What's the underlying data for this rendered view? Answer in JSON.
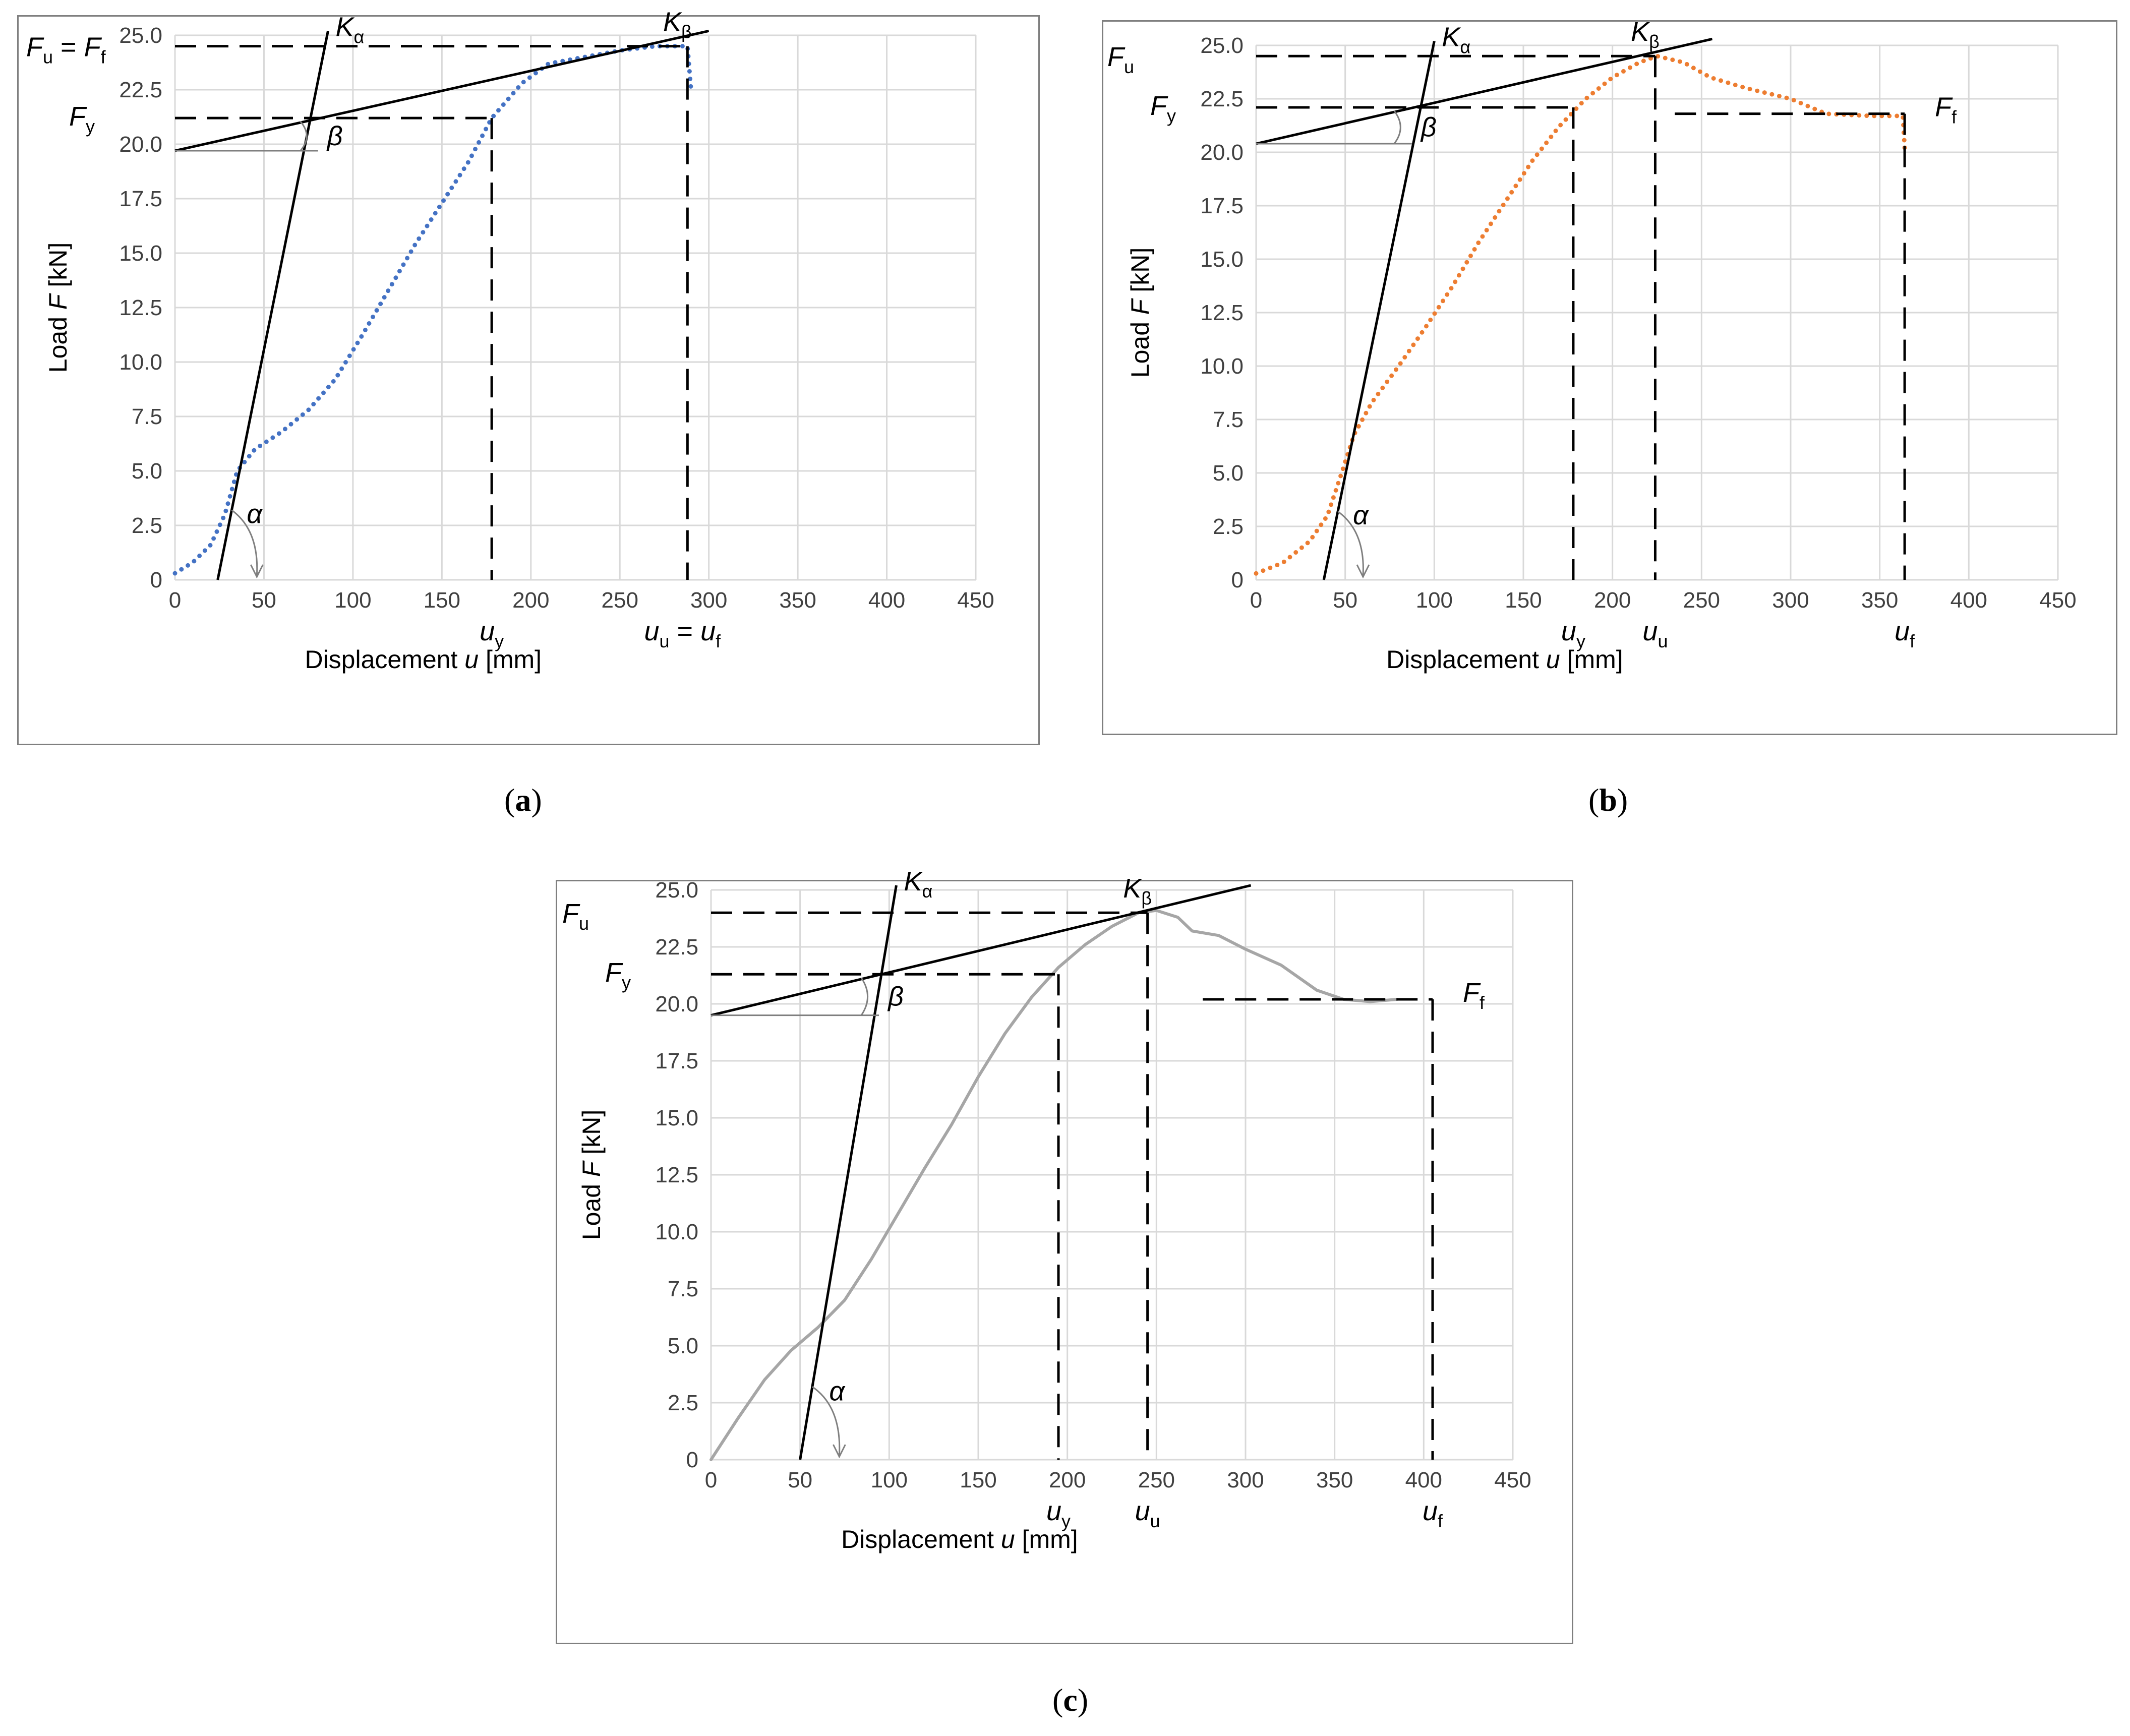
{
  "chart_data": [
    {
      "panel": "a",
      "type": "line",
      "xlabel_prefix": "Displacement ",
      "xlabel_var": "u",
      "xlabel_unit": " [mm]",
      "ylabel_prefix": "Load ",
      "ylabel_var": "F",
      "ylabel_unit": " [kN]",
      "xlim": [
        0,
        450
      ],
      "ylim": [
        0,
        25
      ],
      "x_ticks": [
        "0",
        "50",
        "100",
        "150",
        "200",
        "250",
        "300",
        "350",
        "400",
        "450"
      ],
      "y_ticks": [
        "0",
        "2.5",
        "5.0",
        "7.5",
        "10.0",
        "12.5",
        "15.0",
        "17.5",
        "20.0",
        "22.5",
        "25.0"
      ],
      "series_style": "dotted",
      "series_color": "#4472c4",
      "curve": [
        [
          0,
          0.3
        ],
        [
          10,
          0.8
        ],
        [
          20,
          1.6
        ],
        [
          28,
          3.0
        ],
        [
          35,
          5.0
        ],
        [
          45,
          6.0
        ],
        [
          60,
          6.8
        ],
        [
          75,
          7.8
        ],
        [
          90,
          9.2
        ],
        [
          105,
          11.2
        ],
        [
          120,
          13.3
        ],
        [
          135,
          15.4
        ],
        [
          150,
          17.3
        ],
        [
          165,
          19.2
        ],
        [
          178,
          21.2
        ],
        [
          195,
          22.8
        ],
        [
          210,
          23.7
        ],
        [
          230,
          24.0
        ],
        [
          250,
          24.3
        ],
        [
          270,
          24.5
        ],
        [
          288,
          24.5
        ],
        [
          290,
          22.5
        ]
      ],
      "k_alpha": [
        [
          24,
          0
        ],
        [
          86,
          25.2
        ]
      ],
      "k_beta": [
        [
          0,
          19.7
        ],
        [
          300,
          25.2
        ]
      ],
      "Fy": 21.2,
      "Fu": 24.5,
      "uy": 178,
      "uu": 288,
      "uf": 288,
      "labels": {
        "ka_main": "K",
        "ka_sub": "α",
        "kb_main": "K",
        "kb_sub": "β",
        "fu_main": "F",
        "fu_sub": "u",
        "fu_eq": " = ",
        "ff_main": "F",
        "ff_sub": "f",
        "fy_main": "F",
        "fy_sub": "y",
        "uy_main": "u",
        "uy_sub": "y",
        "uu_main": "u",
        "uu_sub": "u",
        "uu_eq": " = ",
        "uf_main": "u",
        "uf_sub": "f",
        "alpha": "α",
        "beta": "β"
      },
      "caption": "a"
    },
    {
      "panel": "b",
      "type": "line",
      "xlabel_prefix": "Displacement ",
      "xlabel_var": "u",
      "xlabel_unit": " [mm]",
      "ylabel_prefix": "Load ",
      "ylabel_var": "F",
      "ylabel_unit": " [kN]",
      "xlim": [
        0,
        450
      ],
      "ylim": [
        0,
        25
      ],
      "x_ticks": [
        "0",
        "50",
        "100",
        "150",
        "200",
        "250",
        "300",
        "350",
        "400",
        "450"
      ],
      "y_ticks": [
        "0",
        "2.5",
        "5.0",
        "7.5",
        "10.0",
        "12.5",
        "15.0",
        "17.5",
        "20.0",
        "22.5",
        "25.0"
      ],
      "series_style": "dotted",
      "series_color": "#ed7d31",
      "curve": [
        [
          0,
          0.3
        ],
        [
          15,
          0.8
        ],
        [
          30,
          1.8
        ],
        [
          40,
          3.0
        ],
        [
          48,
          5.0
        ],
        [
          55,
          6.8
        ],
        [
          65,
          8.3
        ],
        [
          80,
          10.0
        ],
        [
          95,
          11.8
        ],
        [
          110,
          13.7
        ],
        [
          125,
          15.8
        ],
        [
          140,
          17.7
        ],
        [
          155,
          19.6
        ],
        [
          170,
          21.2
        ],
        [
          185,
          22.5
        ],
        [
          200,
          23.5
        ],
        [
          215,
          24.2
        ],
        [
          225,
          24.5
        ],
        [
          240,
          24.2
        ],
        [
          255,
          23.5
        ],
        [
          275,
          23.0
        ],
        [
          300,
          22.5
        ],
        [
          320,
          21.8
        ],
        [
          345,
          21.7
        ],
        [
          363,
          21.7
        ],
        [
          364,
          20.2
        ]
      ],
      "k_alpha": [
        [
          38,
          0
        ],
        [
          100,
          25.2
        ]
      ],
      "k_beta": [
        [
          0,
          20.4
        ],
        [
          256,
          25.3
        ]
      ],
      "Fy": 22.1,
      "Fu": 24.5,
      "Ff": 21.8,
      "uy": 178,
      "uu": 224,
      "uf": 364,
      "ff_line_start": 235,
      "labels": {
        "ka_main": "K",
        "ka_sub": "α",
        "kb_main": "K",
        "kb_sub": "β",
        "fu_main": "F",
        "fu_sub": "u",
        "fy_main": "F",
        "fy_sub": "y",
        "ff_main": "F",
        "ff_sub": "f",
        "uy_main": "u",
        "uy_sub": "y",
        "uu_main": "u",
        "uu_sub": "u",
        "uf_main": "u",
        "uf_sub": "f",
        "alpha": "α",
        "beta": "β"
      },
      "caption": "b"
    },
    {
      "panel": "c",
      "type": "line",
      "xlabel_prefix": "Displacement ",
      "xlabel_var": "u",
      "xlabel_unit": " [mm]",
      "ylabel_prefix": "Load ",
      "ylabel_var": "F",
      "ylabel_unit": " [kN]",
      "xlim": [
        0,
        450
      ],
      "ylim": [
        0,
        25
      ],
      "x_ticks": [
        "0",
        "50",
        "100",
        "150",
        "200",
        "250",
        "300",
        "350",
        "400",
        "450"
      ],
      "y_ticks": [
        "0",
        "2.5",
        "5.0",
        "7.5",
        "10.0",
        "12.5",
        "15.0",
        "17.5",
        "20.0",
        "22.5",
        "25.0"
      ],
      "series_style": "solid",
      "series_color": "#a6a6a6",
      "curve": [
        [
          0,
          0
        ],
        [
          15,
          1.8
        ],
        [
          30,
          3.5
        ],
        [
          45,
          4.8
        ],
        [
          60,
          5.8
        ],
        [
          75,
          7.0
        ],
        [
          90,
          8.8
        ],
        [
          105,
          10.8
        ],
        [
          120,
          12.8
        ],
        [
          135,
          14.7
        ],
        [
          150,
          16.8
        ],
        [
          165,
          18.7
        ],
        [
          180,
          20.3
        ],
        [
          195,
          21.6
        ],
        [
          210,
          22.6
        ],
        [
          225,
          23.4
        ],
        [
          240,
          24.0
        ],
        [
          250,
          24.1
        ],
        [
          262,
          23.8
        ],
        [
          270,
          23.2
        ],
        [
          285,
          23.0
        ],
        [
          300,
          22.4
        ],
        [
          320,
          21.7
        ],
        [
          340,
          20.6
        ],
        [
          355,
          20.2
        ],
        [
          370,
          20.1
        ],
        [
          385,
          20.2
        ]
      ],
      "k_alpha": [
        [
          50,
          0
        ],
        [
          104,
          25.2
        ]
      ],
      "k_beta": [
        [
          0,
          19.5
        ],
        [
          303,
          25.2
        ]
      ],
      "Fy": 21.3,
      "Fu": 24.0,
      "Ff": 20.2,
      "uy": 195,
      "uu": 245,
      "uf": 405,
      "ff_line_start": 276,
      "labels": {
        "ka_main": "K",
        "ka_sub": "α",
        "kb_main": "K",
        "kb_sub": "β",
        "fu_main": "F",
        "fu_sub": "u",
        "fy_main": "F",
        "fy_sub": "y",
        "ff_main": "F",
        "ff_sub": "f",
        "uy_main": "u",
        "uy_sub": "y",
        "uu_main": "u",
        "uu_sub": "u",
        "uf_main": "u",
        "uf_sub": "f",
        "alpha": "α",
        "beta": "β"
      },
      "caption": "c"
    }
  ]
}
